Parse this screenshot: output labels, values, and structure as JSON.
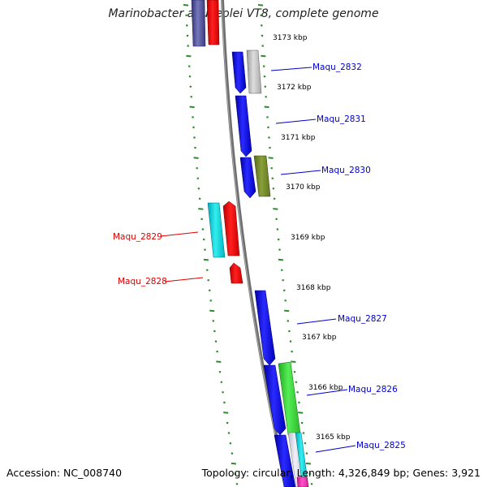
{
  "title": "Marinobacter aquaeolei VT8, complete genome",
  "footer": {
    "accession": "Accession: NC_008740",
    "summary": "Topology: circular; Length: 4,326,849 bp; Genes: 3,921"
  },
  "colors": {
    "backbone": "#777777",
    "tick": "#2e8b2e",
    "label_forward": "#0000cc",
    "label_reverse": "#dd0000",
    "kbp_text": "#000000"
  },
  "kbp_labels": [
    "3173 kbp",
    "3172 kbp",
    "3171 kbp",
    "3170 kbp",
    "3169 kbp",
    "3168 kbp",
    "3167 kbp",
    "3166 kbp",
    "3165 kbp"
  ],
  "gene_labels": {
    "maqu_2832": "Maqu_2832",
    "maqu_2831": "Maqu_2831",
    "maqu_2830": "Maqu_2830",
    "maqu_2829": "Maqu_2829",
    "maqu_2828": "Maqu_2828",
    "maqu_2827": "Maqu_2827",
    "maqu_2826": "Maqu_2826",
    "maqu_2825": "Maqu_2825"
  }
}
